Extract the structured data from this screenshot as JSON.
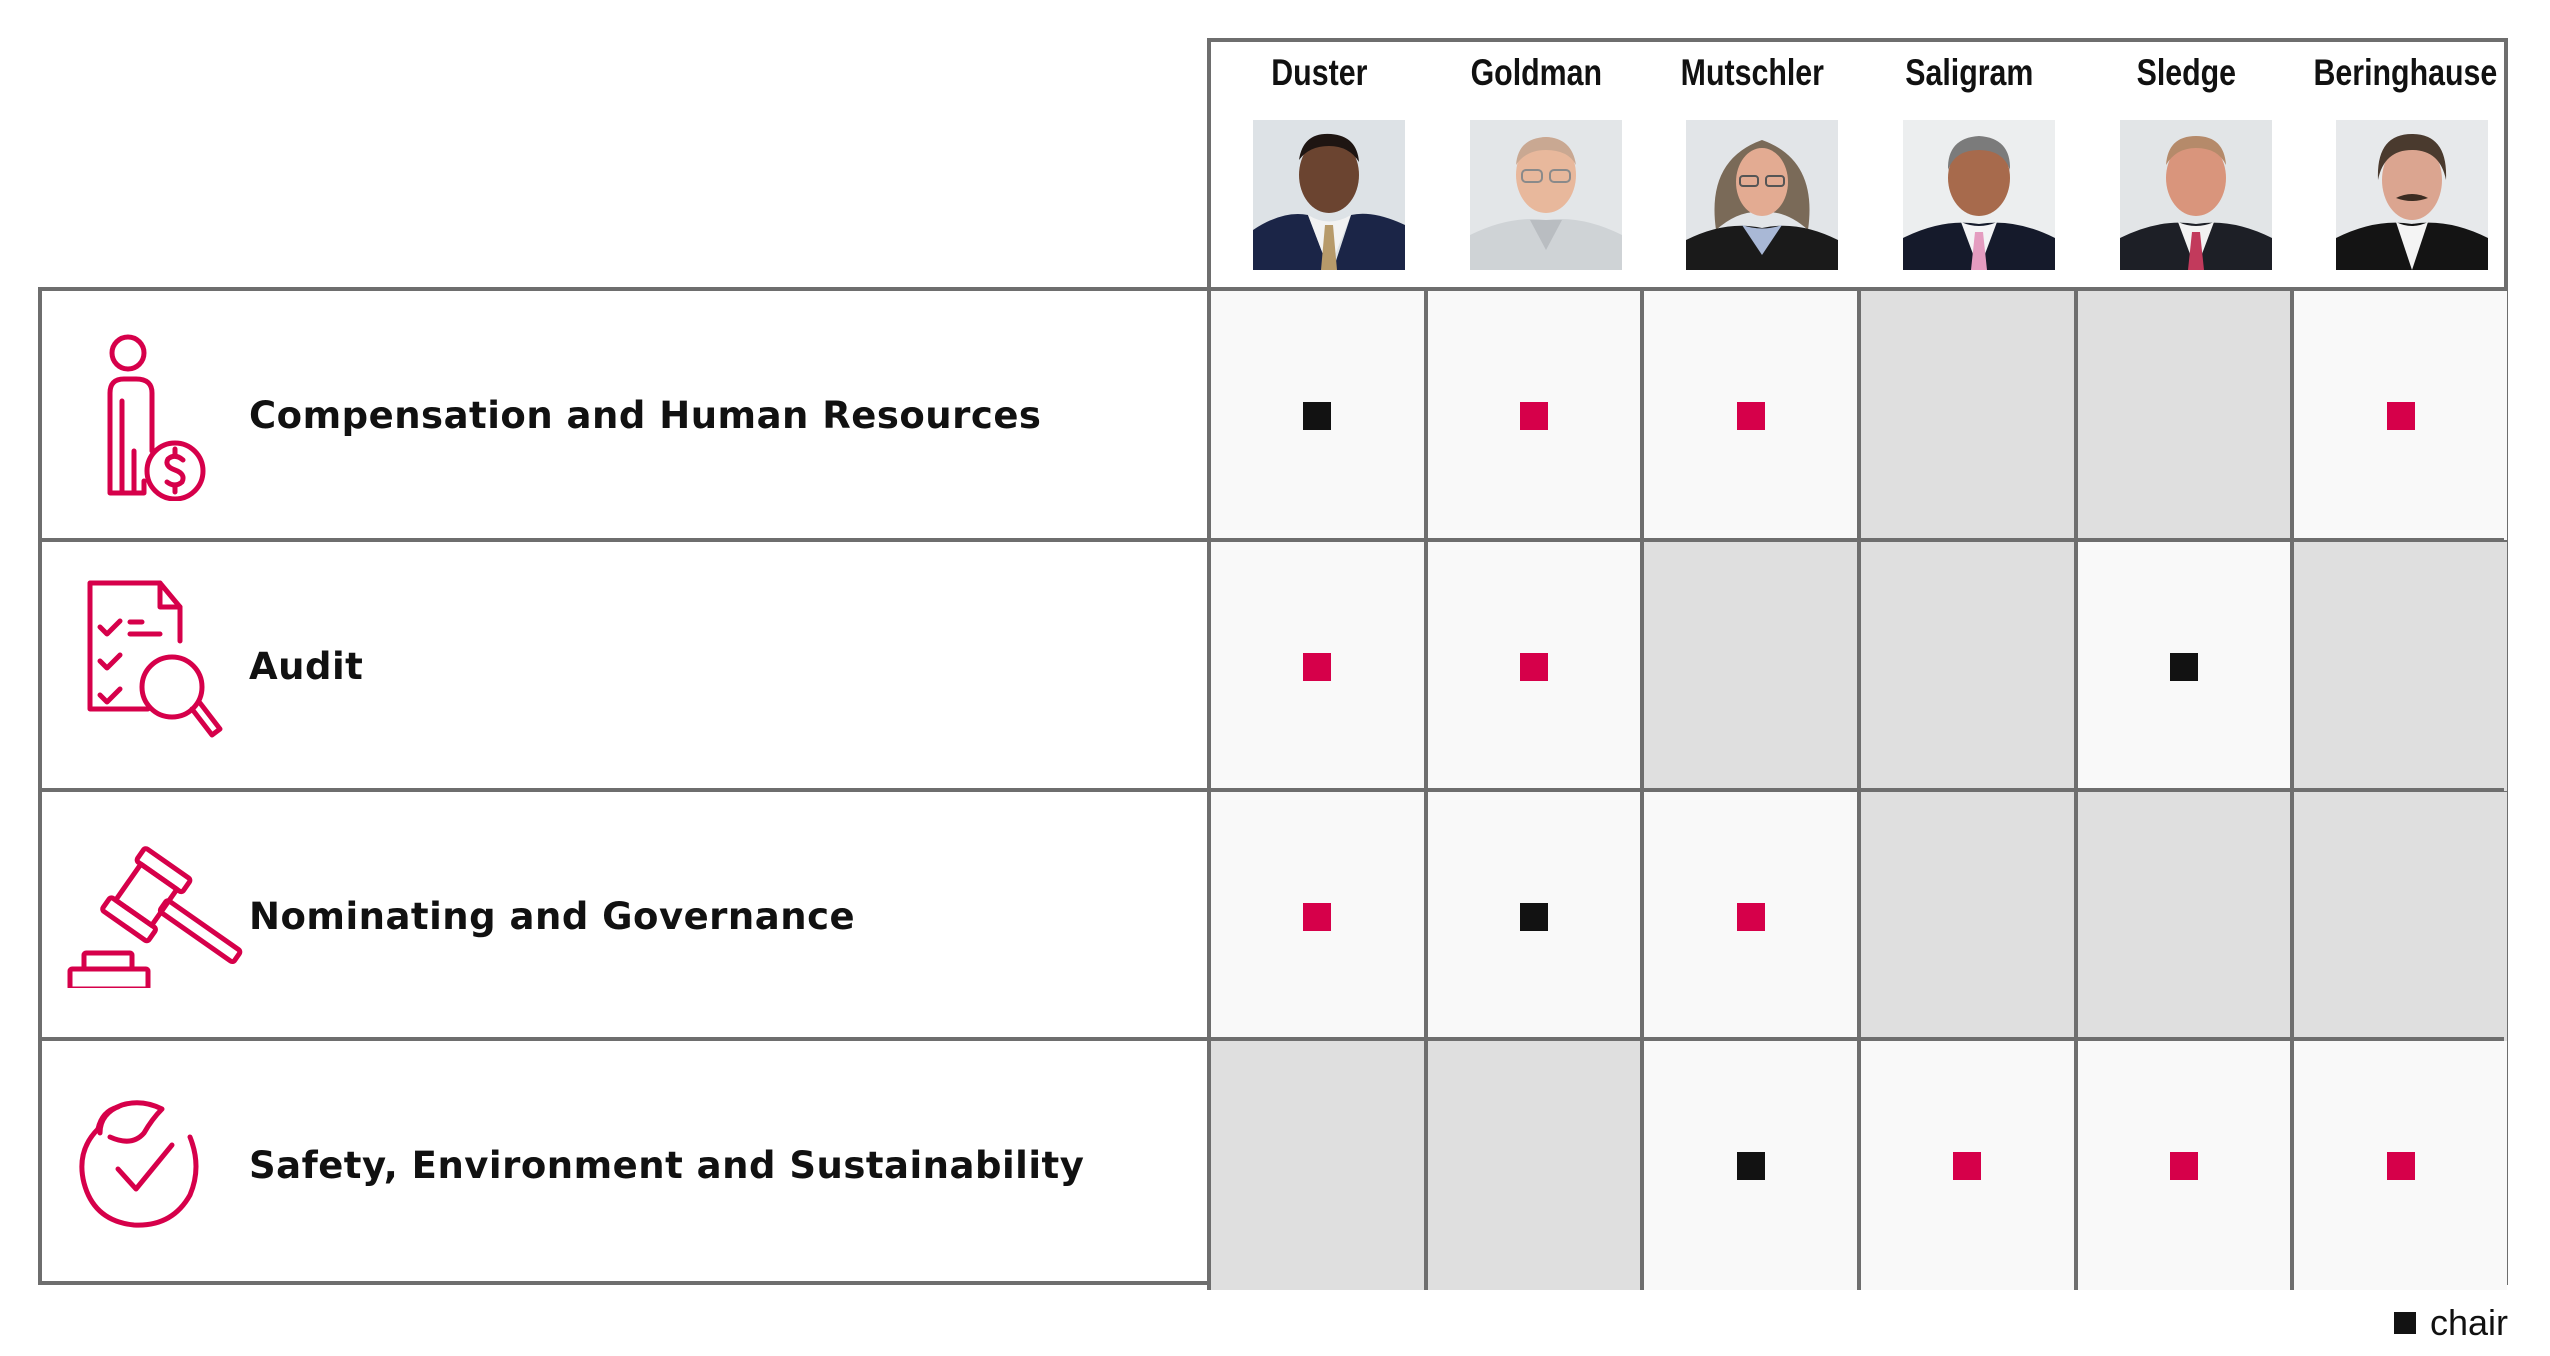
{
  "colors": {
    "accent": "#D6004A",
    "chair": "#121212",
    "border": "#6E6E6E",
    "cell_member": "#F9F9F9",
    "cell_nonmember": "#DFDFDF"
  },
  "directors": [
    {
      "name": "Duster",
      "photo": "director-photo-duster"
    },
    {
      "name": "Goldman",
      "photo": "director-photo-goldman"
    },
    {
      "name": "Mutschler",
      "photo": "director-photo-mutschler"
    },
    {
      "name": "Saligram",
      "photo": "director-photo-saligram"
    },
    {
      "name": "Sledge",
      "photo": "director-photo-sledge"
    },
    {
      "name": "Beringhause",
      "photo": "director-photo-beringhause"
    }
  ],
  "committees": [
    {
      "label": "Compensation and Human Resources",
      "icon": "person-dollar-icon",
      "cells": [
        "chair",
        "member",
        "member",
        "none",
        "none",
        "member"
      ]
    },
    {
      "label": "Audit",
      "icon": "checklist-magnifier-icon",
      "cells": [
        "member",
        "member",
        "none",
        "none",
        "chair",
        "none"
      ]
    },
    {
      "label": "Nominating and Governance",
      "icon": "gavel-icon",
      "cells": [
        "member",
        "chair",
        "member",
        "none",
        "none",
        "none"
      ]
    },
    {
      "label": "Safety, Environment and Sustainability",
      "icon": "leaf-check-circle-icon",
      "cells": [
        "none",
        "none",
        "chair",
        "member",
        "member",
        "member"
      ]
    }
  ],
  "legend": {
    "chair_label": "chair"
  }
}
